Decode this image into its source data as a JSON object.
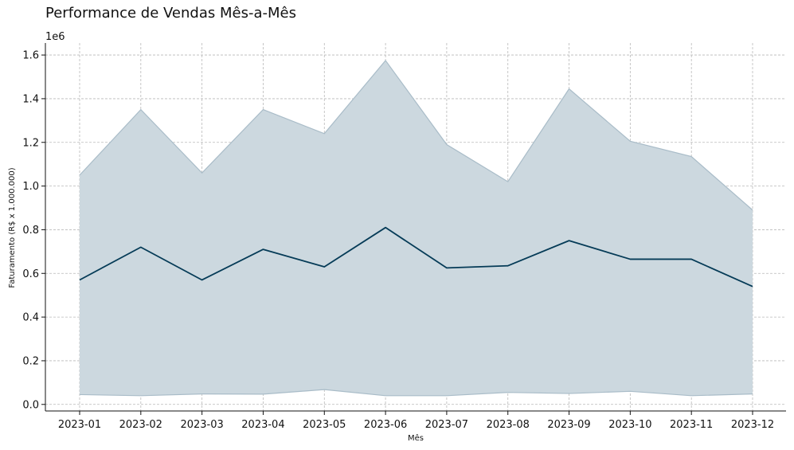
{
  "chart_data": {
    "type": "line",
    "title": "Performance de Vendas Mês-a-Mês",
    "xlabel": "Mês",
    "ylabel": "Faturamento (R$ x 1.000.000)",
    "y_offset_text": "1e6",
    "categories": [
      "2023-01",
      "2023-02",
      "2023-03",
      "2023-04",
      "2023-05",
      "2023-06",
      "2023-07",
      "2023-08",
      "2023-09",
      "2023-10",
      "2023-11",
      "2023-12"
    ],
    "series": [
      {
        "values": [
          0.57,
          0.72,
          0.57,
          0.71,
          0.63,
          0.81,
          0.625,
          0.635,
          0.75,
          0.665,
          0.665,
          0.54
        ],
        "band_upper": [
          1.05,
          1.35,
          1.06,
          1.35,
          1.24,
          1.575,
          1.19,
          1.02,
          1.445,
          1.205,
          1.135,
          0.89
        ],
        "band_lower": [
          0.045,
          0.04,
          0.048,
          0.047,
          0.068,
          0.04,
          0.04,
          0.055,
          0.05,
          0.06,
          0.04,
          0.048
        ]
      }
    ],
    "yticks": [
      "0.0",
      "0.2",
      "0.4",
      "0.6",
      "0.8",
      "1.0",
      "1.2",
      "1.4",
      "1.6"
    ],
    "ylim": [
      -0.03,
      1.655
    ],
    "grid": true,
    "colors": {
      "line": "#053b57",
      "band": "#ccd8df",
      "band_edge": "#a9bcc8",
      "grid": "#b9b9b9",
      "axis": "#111111"
    }
  }
}
